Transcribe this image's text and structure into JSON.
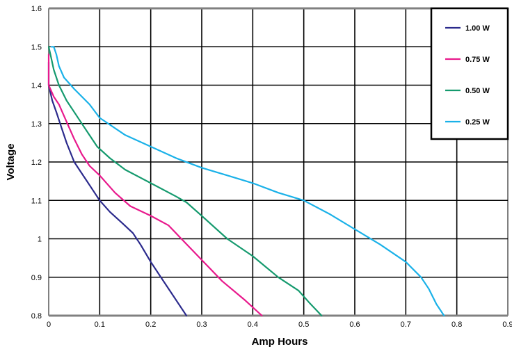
{
  "chart_data": {
    "type": "line",
    "title": "",
    "xlabel": "Amp Hours",
    "ylabel": "Voltage",
    "xlim": [
      0,
      0.9
    ],
    "ylim": [
      0.8,
      1.6
    ],
    "xticks": [
      0,
      0.1,
      0.2,
      0.3,
      0.4,
      0.5,
      0.6,
      0.7,
      0.8,
      0.9
    ],
    "xtick_labels": [
      "0",
      "0.1",
      "0.2",
      "0.3",
      "0.4",
      "0.5",
      "0.6",
      "0.7",
      "0.8",
      "0.9"
    ],
    "yticks": [
      0.8,
      0.9,
      1.0,
      1.1,
      1.2,
      1.3,
      1.4,
      1.5,
      1.6
    ],
    "ytick_labels": [
      "0.8",
      "0.9",
      "1",
      "1.1",
      "1.2",
      "1.3",
      "1.4",
      "1.5",
      "1.6"
    ],
    "grid": true,
    "legend_position": "top-right",
    "series": [
      {
        "name": "1.00  W",
        "color": "#2b2a8c",
        "points": [
          [
            0.0,
            1.46
          ],
          [
            0.0,
            1.4
          ],
          [
            0.007,
            1.36
          ],
          [
            0.015,
            1.33
          ],
          [
            0.025,
            1.29
          ],
          [
            0.035,
            1.25
          ],
          [
            0.05,
            1.2
          ],
          [
            0.065,
            1.17
          ],
          [
            0.08,
            1.14
          ],
          [
            0.1,
            1.1
          ],
          [
            0.12,
            1.07
          ],
          [
            0.145,
            1.04
          ],
          [
            0.165,
            1.015
          ],
          [
            0.18,
            0.985
          ],
          [
            0.2,
            0.94
          ],
          [
            0.22,
            0.9
          ],
          [
            0.24,
            0.86
          ],
          [
            0.27,
            0.8
          ]
        ]
      },
      {
        "name": "0.75  W",
        "color": "#e8198c",
        "points": [
          [
            0.0,
            1.48
          ],
          [
            0.0,
            1.4
          ],
          [
            0.01,
            1.37
          ],
          [
            0.02,
            1.35
          ],
          [
            0.03,
            1.32
          ],
          [
            0.04,
            1.29
          ],
          [
            0.05,
            1.26
          ],
          [
            0.065,
            1.22
          ],
          [
            0.08,
            1.19
          ],
          [
            0.1,
            1.165
          ],
          [
            0.13,
            1.12
          ],
          [
            0.16,
            1.085
          ],
          [
            0.2,
            1.06
          ],
          [
            0.235,
            1.035
          ],
          [
            0.26,
            1.0
          ],
          [
            0.3,
            0.945
          ],
          [
            0.34,
            0.89
          ],
          [
            0.385,
            0.84
          ],
          [
            0.418,
            0.8
          ]
        ]
      },
      {
        "name": "0.50  W",
        "color": "#159a6e",
        "points": [
          [
            0.0,
            1.5
          ],
          [
            0.005,
            1.47
          ],
          [
            0.01,
            1.44
          ],
          [
            0.02,
            1.4
          ],
          [
            0.035,
            1.36
          ],
          [
            0.05,
            1.33
          ],
          [
            0.07,
            1.29
          ],
          [
            0.095,
            1.24
          ],
          [
            0.12,
            1.21
          ],
          [
            0.15,
            1.18
          ],
          [
            0.2,
            1.145
          ],
          [
            0.25,
            1.11
          ],
          [
            0.27,
            1.095
          ],
          [
            0.3,
            1.06
          ],
          [
            0.35,
            1.0
          ],
          [
            0.4,
            0.955
          ],
          [
            0.45,
            0.9
          ],
          [
            0.49,
            0.865
          ],
          [
            0.51,
            0.835
          ],
          [
            0.535,
            0.8
          ]
        ]
      },
      {
        "name": "0.25  W",
        "color": "#1ab1e8",
        "points": [
          [
            0.005,
            1.5
          ],
          [
            0.01,
            1.5
          ],
          [
            0.015,
            1.48
          ],
          [
            0.02,
            1.45
          ],
          [
            0.03,
            1.42
          ],
          [
            0.05,
            1.39
          ],
          [
            0.08,
            1.35
          ],
          [
            0.1,
            1.315
          ],
          [
            0.15,
            1.27
          ],
          [
            0.2,
            1.24
          ],
          [
            0.25,
            1.21
          ],
          [
            0.3,
            1.185
          ],
          [
            0.35,
            1.165
          ],
          [
            0.4,
            1.145
          ],
          [
            0.45,
            1.12
          ],
          [
            0.5,
            1.1
          ],
          [
            0.55,
            1.065
          ],
          [
            0.6,
            1.025
          ],
          [
            0.65,
            0.985
          ],
          [
            0.7,
            0.94
          ],
          [
            0.73,
            0.9
          ],
          [
            0.745,
            0.87
          ],
          [
            0.76,
            0.83
          ],
          [
            0.775,
            0.8
          ]
        ]
      }
    ]
  }
}
